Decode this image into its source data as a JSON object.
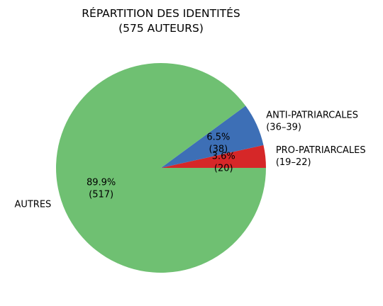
{
  "chart_data": {
    "type": "pie",
    "title_line1": "RÉPARTITION DES IDENTITÉS",
    "title_line2": "(575 AUTEURS)",
    "slices": [
      {
        "label_line1": "PRO-PATRIARCALES",
        "label_line2": "(19–22)",
        "value": 20,
        "percent_label": "3.6%",
        "count_label": "(20)",
        "color": "#d62728"
      },
      {
        "label_line1": "ANTI-PATRIARCALES",
        "label_line2": "(36–39)",
        "value": 38,
        "percent_label": "6.5%",
        "count_label": "(38)",
        "color": "#3d6fb6"
      },
      {
        "label_line1": "AUTRES",
        "label_line2": "",
        "value": 517,
        "percent_label": "89.9%",
        "count_label": "(517)",
        "color": "#6fc072"
      }
    ]
  }
}
